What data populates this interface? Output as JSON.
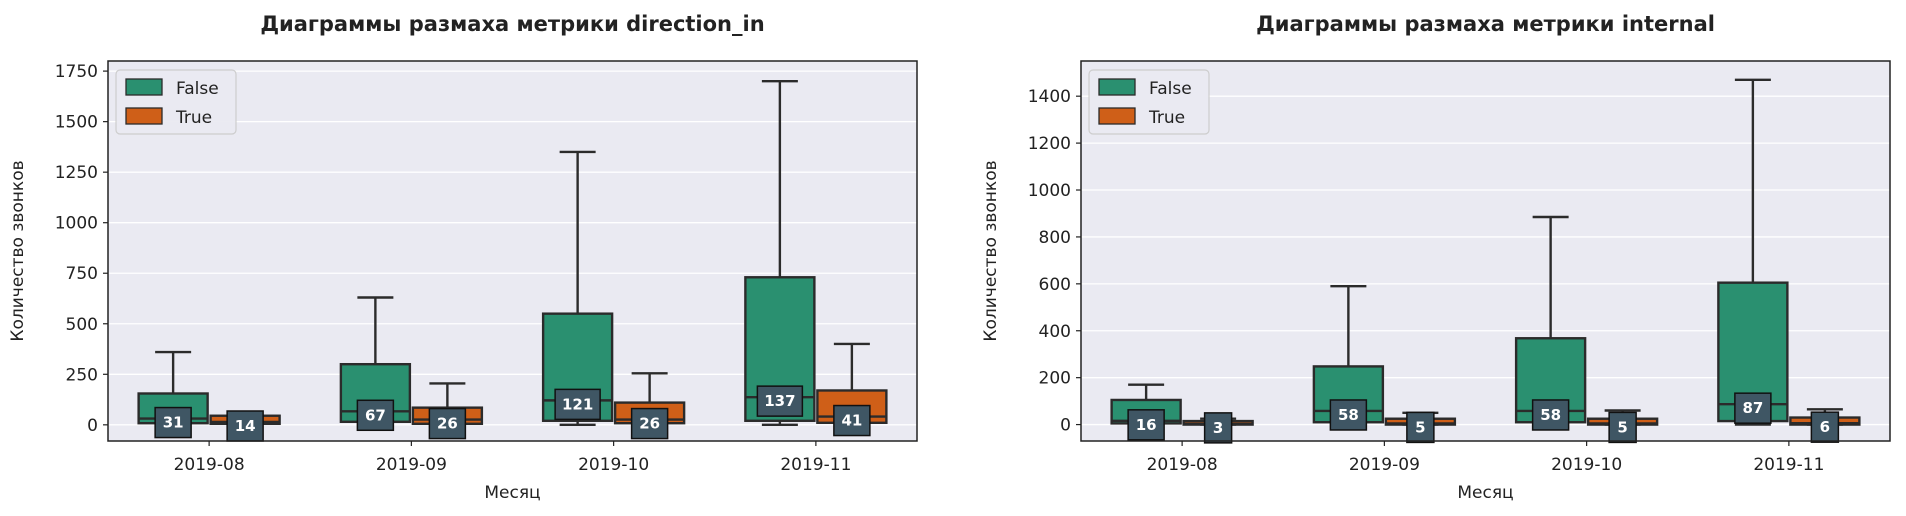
{
  "colors": {
    "background": "#eaeaf2",
    "grid": "#ffffff",
    "series_false": "#2a9070",
    "series_true": "#cf5f18",
    "label_box": "#3f5664",
    "edge": "#2b2b2b"
  },
  "chart_data": [
    {
      "type": "box",
      "title": "Диаграммы размаха метрики direction_in",
      "xlabel": "Месяц",
      "ylabel": "Количество звонков",
      "ylim": [
        -80,
        1800
      ],
      "yticks": [
        0,
        250,
        500,
        750,
        1000,
        1250,
        1500,
        1750
      ],
      "grid": true,
      "legend_position": "top-left",
      "categories": [
        "2019-08",
        "2019-09",
        "2019-10",
        "2019-11"
      ],
      "series": [
        {
          "name": "False",
          "boxes": [
            {
              "whislo": 0,
              "q1": 8,
              "med": 31,
              "q3": 155,
              "whishi": 360,
              "label": "31"
            },
            {
              "whislo": 0,
              "q1": 15,
              "med": 67,
              "q3": 300,
              "whishi": 630,
              "label": "67"
            },
            {
              "whislo": 0,
              "q1": 20,
              "med": 121,
              "q3": 550,
              "whishi": 1350,
              "label": "121"
            },
            {
              "whislo": 0,
              "q1": 20,
              "med": 137,
              "q3": 730,
              "whishi": 1700,
              "label": "137"
            }
          ]
        },
        {
          "name": "True",
          "boxes": [
            {
              "whislo": 0,
              "q1": 5,
              "med": 14,
              "q3": 45,
              "whishi": 45,
              "label": "14"
            },
            {
              "whislo": 0,
              "q1": 5,
              "med": 26,
              "q3": 85,
              "whishi": 205,
              "label": "26"
            },
            {
              "whislo": 0,
              "q1": 8,
              "med": 26,
              "q3": 110,
              "whishi": 255,
              "label": "26"
            },
            {
              "whislo": 0,
              "q1": 10,
              "med": 41,
              "q3": 170,
              "whishi": 400,
              "label": "41"
            }
          ]
        }
      ]
    },
    {
      "type": "box",
      "title": "Диаграммы размаха метрики internal",
      "xlabel": "Месяц",
      "ylabel": "Количество звонков",
      "ylim": [
        -70,
        1550
      ],
      "yticks": [
        0,
        200,
        400,
        600,
        800,
        1000,
        1200,
        1400
      ],
      "grid": true,
      "legend_position": "top-left",
      "categories": [
        "2019-08",
        "2019-09",
        "2019-10",
        "2019-11"
      ],
      "series": [
        {
          "name": "False",
          "boxes": [
            {
              "whislo": 0,
              "q1": 5,
              "med": 16,
              "q3": 105,
              "whishi": 170,
              "label": "16"
            },
            {
              "whislo": 0,
              "q1": 10,
              "med": 58,
              "q3": 248,
              "whishi": 590,
              "label": "58"
            },
            {
              "whislo": 0,
              "q1": 10,
              "med": 58,
              "q3": 368,
              "whishi": 885,
              "label": "58"
            },
            {
              "whislo": 0,
              "q1": 15,
              "med": 87,
              "q3": 605,
              "whishi": 1470,
              "label": "87"
            }
          ]
        },
        {
          "name": "True",
          "boxes": [
            {
              "whislo": 0,
              "q1": 0,
              "med": 3,
              "q3": 15,
              "whishi": 25,
              "label": "3"
            },
            {
              "whislo": 0,
              "q1": 0,
              "med": 5,
              "q3": 25,
              "whishi": 50,
              "label": "5"
            },
            {
              "whislo": 0,
              "q1": 0,
              "med": 5,
              "q3": 25,
              "whishi": 60,
              "label": "5"
            },
            {
              "whislo": 0,
              "q1": 0,
              "med": 6,
              "q3": 30,
              "whishi": 65,
              "label": "6"
            }
          ]
        }
      ]
    }
  ]
}
